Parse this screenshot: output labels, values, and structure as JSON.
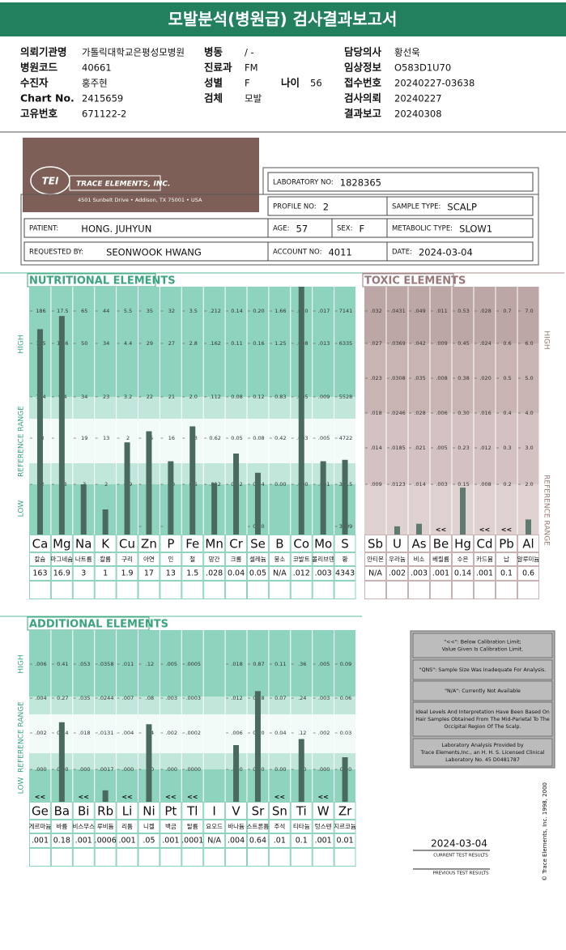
{
  "header": {
    "title": "모발분석(병원급) 검사결과보고서"
  },
  "info": {
    "left": [
      [
        "의뢰기관명",
        "가톨릭대학교은평성모병원"
      ],
      [
        "병원코드",
        "40661"
      ],
      [
        "수진자",
        "홍주현"
      ],
      [
        "Chart No.",
        "2415659"
      ],
      [
        "고유번호",
        "671122-2"
      ]
    ],
    "mid": [
      [
        "병동",
        "/ -"
      ],
      [
        "진료과",
        "FM"
      ],
      [
        "성별",
        "F"
      ],
      [
        "검체",
        "모발"
      ]
    ],
    "age": [
      "나이",
      "56"
    ],
    "right": [
      [
        "담당의사",
        "황선욱"
      ],
      [
        "임상정보",
        "O583D1U70"
      ],
      [
        "접수번호",
        "20240227-03638"
      ],
      [
        "검사의뢰",
        "20240227"
      ],
      [
        "결과보고",
        "20240308"
      ]
    ]
  },
  "lab": {
    "logo": "TEI",
    "name": "TRACE ELEMENTS, INC.",
    "address": "4501 Sunbelt Drive • Addison, TX 75001 • USA",
    "fields": [
      {
        "label": "LABORATORY NO:",
        "value": "1828365"
      },
      {
        "label": "PROFILE NO:",
        "value": "2"
      },
      {
        "label": "SAMPLE TYPE:",
        "value": "SCALP"
      },
      {
        "label": "PATIENT:",
        "value": "HONG. JUHYUN"
      },
      {
        "label": "AGE:",
        "value": "57"
      },
      {
        "label": "SEX:",
        "value": "F"
      },
      {
        "label": "METABOLIC TYPE:",
        "value": "SLOW1"
      },
      {
        "label": "REQUESTED BY:",
        "value": "SEONWOOK HWANG"
      },
      {
        "label": "ACCOUNT NO:",
        "value": "4011"
      },
      {
        "label": "DATE:",
        "value": "2024-03-04"
      }
    ]
  },
  "nutritional": {
    "title": "NUTRITIONAL ELEMENTS",
    "side": [
      "HIGH",
      "REFERENCE RANGE",
      "LOW"
    ],
    "elements": [
      {
        "symbol": "Ca",
        "name": "칼슘",
        "result": "163",
        "scale": [
          "186",
          "145",
          "104",
          "63",
          "22"
        ]
      },
      {
        "symbol": "Mg",
        "name": "마그네슘",
        "result": "16.9",
        "scale": [
          "17.5",
          "13.6",
          "9.4",
          "5",
          "1.3"
        ]
      },
      {
        "symbol": "Na",
        "name": "나트륨",
        "result": "3",
        "scale": [
          "65",
          "50",
          "34",
          "19",
          "3"
        ]
      },
      {
        "symbol": "K",
        "name": "칼륨",
        "result": "1",
        "scale": [
          "44",
          "34",
          "23",
          "13",
          "2"
        ]
      },
      {
        "symbol": "Cu",
        "name": "구리",
        "result": "1.9",
        "scale": [
          "5.5",
          "4.4",
          "3.2",
          "2",
          "0.9"
        ]
      },
      {
        "symbol": "Zn",
        "name": "아연",
        "result": "17",
        "scale": [
          "35",
          "29",
          "22",
          "16",
          "9",
          "3"
        ]
      },
      {
        "symbol": "P",
        "name": "인",
        "result": "13",
        "scale": [
          "32",
          "27",
          "21",
          "16",
          "10",
          "5"
        ]
      },
      {
        "symbol": "Fe",
        "name": "철",
        "result": "1.5",
        "scale": [
          "3.5",
          "2.8",
          "2.0",
          "1.3",
          "0.5"
        ]
      },
      {
        "symbol": "Mn",
        "name": "망간",
        "result": ".028",
        "scale": [
          ".212",
          ".162",
          ".112",
          "0.62",
          ".012"
        ]
      },
      {
        "symbol": "Cr",
        "name": "크롬",
        "result": "0.04",
        "scale": [
          "0.14",
          "0.11",
          "0.08",
          "0.05",
          "0.02"
        ]
      },
      {
        "symbol": "Se",
        "name": "셀레늄",
        "result": "0.05",
        "scale": [
          "0.20",
          "0.16",
          "0.12",
          "0.08",
          "0.04",
          "0.00"
        ]
      },
      {
        "symbol": "B",
        "name": "붕소",
        "result": "N/A",
        "scale": [
          "1.66",
          "1.25",
          "0.83",
          "0.42",
          "0.00"
        ]
      },
      {
        "symbol": "Co",
        "name": "코발트",
        "result": ".012",
        "scale": [
          ".010",
          ".008",
          ".005",
          ".003",
          ".000"
        ]
      },
      {
        "symbol": "Mo",
        "name": "몰리브덴",
        "result": ".003",
        "scale": [
          ".017",
          ".013",
          ".009",
          ".005",
          ".001"
        ]
      },
      {
        "symbol": "S",
        "name": "황",
        "result": "4343",
        "scale": [
          "7141",
          "6335",
          "5528",
          "4722",
          "3915",
          "3109"
        ]
      }
    ]
  },
  "toxic": {
    "title": "TOXIC ELEMENTS",
    "side": [
      "HIGH",
      "REFERENCE RANGE"
    ],
    "elements": [
      {
        "symbol": "Sb",
        "name": "안티몬",
        "result": "N/A",
        "scale": [
          ".032",
          ".027",
          ".023",
          ".018",
          ".014",
          ".009"
        ]
      },
      {
        "symbol": "U",
        "name": "우라늄",
        "result": ".002",
        "scale": [
          ".0431",
          ".0369",
          ".0308",
          ".0246",
          ".0185",
          ".0123"
        ]
      },
      {
        "symbol": "As",
        "name": "비소",
        "result": ".003",
        "scale": [
          ".049",
          ".042",
          ".035",
          ".028",
          ".021",
          ".014"
        ]
      },
      {
        "symbol": "Be",
        "name": "베릴륨",
        "result": ".001",
        "flag": "<<",
        "scale": [
          ".011",
          ".009",
          ".008",
          ".006",
          ".005",
          ".003"
        ]
      },
      {
        "symbol": "Hg",
        "name": "수은",
        "result": "0.14",
        "scale": [
          "0.53",
          "0.45",
          "0.38",
          "0.30",
          "0.23",
          "0.15"
        ]
      },
      {
        "symbol": "Cd",
        "name": "카드뮴",
        "result": ".001",
        "flag": "<<",
        "scale": [
          ".028",
          ".024",
          ".020",
          ".016",
          ".012",
          ".008"
        ]
      },
      {
        "symbol": "Pb",
        "name": "납",
        "result": "0.1",
        "flag": "<<",
        "scale": [
          "0.7",
          "0.6",
          "0.5",
          "0.4",
          "0.3",
          "0.2"
        ]
      },
      {
        "symbol": "Al",
        "name": "알루미늄",
        "result": "0.6",
        "scale": [
          "7.0",
          "6.0",
          "5.0",
          "4.0",
          "3.0",
          "2.0"
        ]
      }
    ]
  },
  "additional": {
    "title": "ADDITIONAL ELEMENTS",
    "side": [
      "HIGH",
      "REFERENCE RANGE",
      "LOW"
    ],
    "elements": [
      {
        "symbol": "Ge",
        "name": "게르마늄",
        "result": ".001",
        "flag": "<<",
        "scale": [
          ".006",
          ".004",
          ".002",
          ".000"
        ]
      },
      {
        "symbol": "Ba",
        "name": "바륨",
        "result": "0.18",
        "scale": [
          "0.41",
          "0.27",
          "0.14",
          "0.00"
        ]
      },
      {
        "symbol": "Bi",
        "name": "비스무스",
        "result": ".001",
        "flag": "<<",
        "scale": [
          ".053",
          ".035",
          ".018",
          ".000"
        ]
      },
      {
        "symbol": "Rb",
        "name": "루비듐",
        "result": ".0006",
        "scale": [
          ".0358",
          ".0244",
          ".0131",
          ".0017"
        ]
      },
      {
        "symbol": "Li",
        "name": "리튬",
        "result": ".001",
        "flag": "<<",
        "scale": [
          ".011",
          ".007",
          ".004",
          ".000"
        ]
      },
      {
        "symbol": "Ni",
        "name": "니켈",
        "result": ".05",
        "scale": [
          ".12",
          ".08",
          ".04",
          ".00"
        ]
      },
      {
        "symbol": "Pt",
        "name": "백금",
        "result": ".001",
        "flag": "<<",
        "scale": [
          ".005",
          ".003",
          ".002",
          ".000"
        ]
      },
      {
        "symbol": "Tl",
        "name": "탈륨",
        "result": ".0001",
        "flag": "<<",
        "scale": [
          ".0005",
          ".0003",
          ".0002",
          ".0000"
        ]
      },
      {
        "symbol": "I",
        "name": "요오드",
        "result": "N/A",
        "scale": []
      },
      {
        "symbol": "V",
        "name": "바나듐",
        "result": ".004",
        "scale": [
          ".018",
          ".012",
          ".006",
          ".000"
        ]
      },
      {
        "symbol": "Sr",
        "name": "스트론튬",
        "result": "0.64",
        "scale": [
          "0.87",
          "0.58",
          "0.30",
          "0.00"
        ]
      },
      {
        "symbol": "Sn",
        "name": "주석",
        "result": ".01",
        "flag": "<<",
        "scale": [
          "0.11",
          "0.07",
          "0.04",
          "0.00"
        ]
      },
      {
        "symbol": "Ti",
        "name": "티타늄",
        "result": "0.1",
        "scale": [
          ".36",
          ".24",
          ".12",
          ".00"
        ]
      },
      {
        "symbol": "W",
        "name": "텅스텐",
        "result": ".001",
        "flag": "<<",
        "scale": [
          ".005",
          ".003",
          ".002",
          ".000"
        ]
      },
      {
        "symbol": "Zr",
        "name": "지르코늄",
        "result": "0.01",
        "scale": [
          "0.09",
          "0.06",
          "0.03",
          "0.00"
        ]
      }
    ]
  },
  "notes": [
    [
      "\"<<\": Below Calibration Limit;",
      "Value Given Is Calibration Limit."
    ],
    [
      "\"QNS\": Sample Size Was Inadequate For Analysis."
    ],
    [
      "\"N/A\": Currently Not Available"
    ],
    [
      "Ideal Levels And Interpretation Have Been Based On",
      "Hair Samples Obtained From The Mid-Parietal To The",
      "Occipital Region Of The Scalp."
    ],
    [
      "Laboratory Analysis Provided by",
      "Trace Elements,Inc., an H. H. S. Licensed Clinical",
      "Laboratory No. 45 D0481787"
    ]
  ],
  "footer": {
    "date": "2024-03-04",
    "current": "CURRENT TEST RESULTS",
    "previous": "PREVIOUS TEST RESULTS",
    "copyright": "© Trace Elements, Inc. 1998, 2000"
  }
}
